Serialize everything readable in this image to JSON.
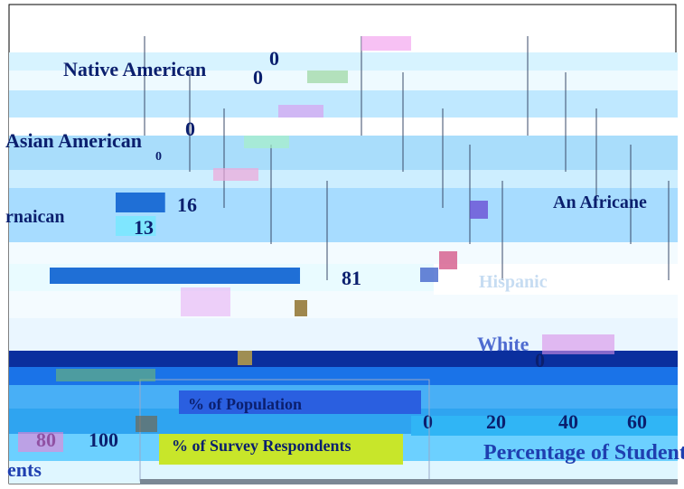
{
  "chart_data": {
    "type": "bar",
    "orientation": "horizontal",
    "categories": [
      "Native American",
      "Asian American",
      "African American",
      "Hispanic",
      "White"
    ],
    "series": [
      {
        "name": "% of Population",
        "values": [
          0,
          0,
          16,
          null,
          81
        ]
      },
      {
        "name": "% of Survey Respondents",
        "values": [
          0,
          0,
          13,
          null,
          null
        ]
      }
    ],
    "category_labels_visible": [
      "Native American",
      "Asian American",
      "rnaican",
      "An Africane",
      "Hispanic",
      "White"
    ],
    "value_labels": [
      "0",
      "0",
      "0",
      "0",
      "16",
      "13",
      "81",
      "0"
    ],
    "x_ticks": [
      "0",
      "20",
      "40",
      "60",
      "80",
      "100"
    ],
    "xlabel": "Percentage of Students",
    "xlim": [
      0,
      100
    ],
    "legend": {
      "placement": "bottom-center",
      "entries": [
        "% of Population",
        "% of Survey Respondents"
      ]
    },
    "grid": true,
    "colors": {
      "population": "#1f6fd6",
      "respondents": "#7fe6ff",
      "legend_population_bg": "#2a5fe0",
      "legend_respondents_bg": "#c8e62a",
      "text": "#0b1f6e",
      "xlabel": "#1f3fb0"
    }
  }
}
